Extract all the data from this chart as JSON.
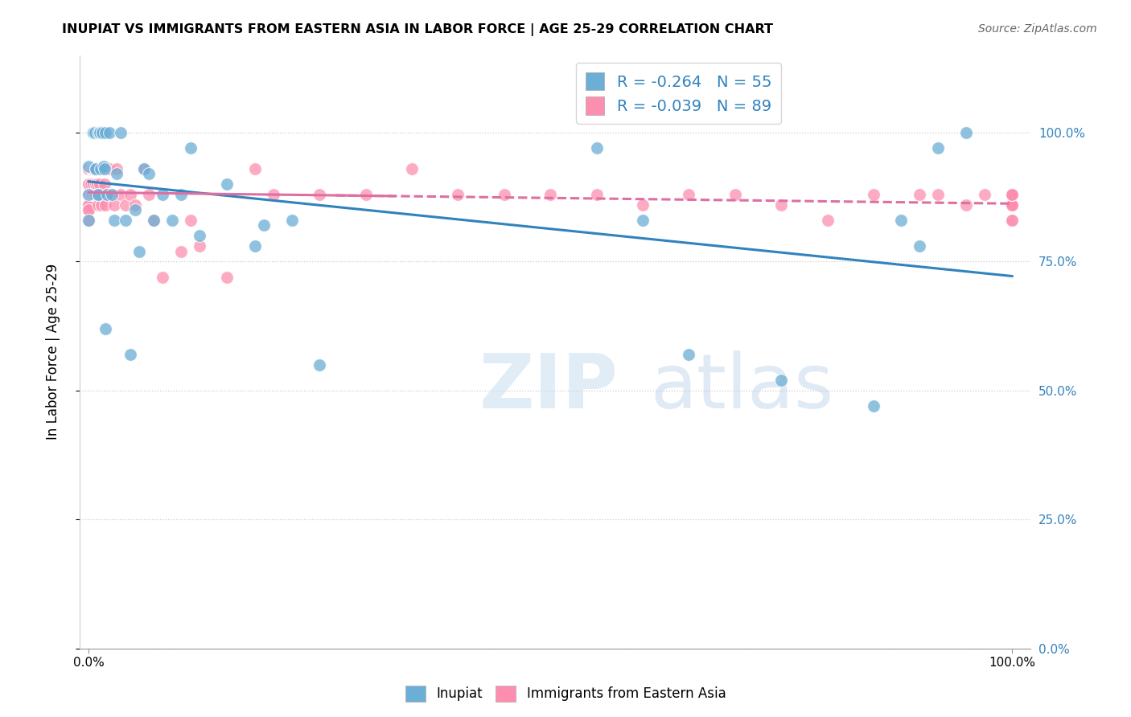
{
  "title": "INUPIAT VS IMMIGRANTS FROM EASTERN ASIA IN LABOR FORCE | AGE 25-29 CORRELATION CHART",
  "source": "Source: ZipAtlas.com",
  "ylabel": "In Labor Force | Age 25-29",
  "legend_R_blue": "-0.264",
  "legend_N_blue": "55",
  "legend_R_pink": "-0.039",
  "legend_N_pink": "89",
  "blue_color": "#6baed6",
  "pink_color": "#fc8faf",
  "trend_blue": "#3182bd",
  "trend_pink": "#de6fa1",
  "watermark_zip": "ZIP",
  "watermark_atlas": "atlas",
  "xlim": [
    0.0,
    1.0
  ],
  "ylim": [
    0.0,
    1.1
  ],
  "right_ytick_vals": [
    0.0,
    0.25,
    0.5,
    0.75,
    1.0
  ],
  "right_ytick_labels": [
    "0.0%",
    "25.0%",
    "50.0%",
    "75.0%",
    "100.0%"
  ],
  "blue_x": [
    0.0,
    0.0,
    0.0,
    0.004,
    0.004,
    0.005,
    0.005,
    0.005,
    0.007,
    0.008,
    0.008,
    0.01,
    0.01,
    0.01,
    0.012,
    0.012,
    0.013,
    0.015,
    0.015,
    0.016,
    0.017,
    0.018,
    0.018,
    0.02,
    0.022,
    0.025,
    0.028,
    0.03,
    0.035,
    0.04,
    0.045,
    0.05,
    0.055,
    0.06,
    0.065,
    0.07,
    0.08,
    0.09,
    0.1,
    0.11,
    0.12,
    0.15,
    0.18,
    0.19,
    0.22,
    0.25,
    0.55,
    0.6,
    0.65,
    0.75,
    0.85,
    0.88,
    0.9,
    0.92,
    0.95
  ],
  "blue_y": [
    0.935,
    0.88,
    0.83,
    1.0,
    1.0,
    1.0,
    1.0,
    1.0,
    1.0,
    0.93,
    0.93,
    0.88,
    0.88,
    1.0,
    1.0,
    1.0,
    0.93,
    1.0,
    1.0,
    0.935,
    0.93,
    1.0,
    0.62,
    0.88,
    1.0,
    0.88,
    0.83,
    0.92,
    1.0,
    0.83,
    0.57,
    0.85,
    0.77,
    0.93,
    0.92,
    0.83,
    0.88,
    0.83,
    0.88,
    0.97,
    0.8,
    0.9,
    0.78,
    0.82,
    0.83,
    0.55,
    0.97,
    0.83,
    0.57,
    0.52,
    0.47,
    0.83,
    0.78,
    0.97,
    1.0
  ],
  "pink_x": [
    0.0,
    0.0,
    0.0,
    0.0,
    0.0,
    0.0,
    0.0,
    0.0,
    0.0,
    0.0,
    0.0,
    0.0,
    0.0,
    0.002,
    0.002,
    0.002,
    0.003,
    0.003,
    0.004,
    0.004,
    0.005,
    0.005,
    0.005,
    0.006,
    0.006,
    0.007,
    0.007,
    0.008,
    0.008,
    0.009,
    0.009,
    0.01,
    0.01,
    0.011,
    0.012,
    0.012,
    0.013,
    0.014,
    0.015,
    0.015,
    0.016,
    0.017,
    0.018,
    0.02,
    0.022,
    0.025,
    0.028,
    0.03,
    0.035,
    0.04,
    0.045,
    0.05,
    0.06,
    0.065,
    0.07,
    0.08,
    0.1,
    0.11,
    0.12,
    0.15,
    0.18,
    0.2,
    0.25,
    0.3,
    0.35,
    0.4,
    0.45,
    0.5,
    0.55,
    0.6,
    0.65,
    0.7,
    0.75,
    0.8,
    0.85,
    0.9,
    0.92,
    0.95,
    0.97,
    1.0,
    1.0,
    1.0,
    1.0,
    1.0,
    1.0,
    1.0,
    1.0,
    1.0,
    1.0
  ],
  "pink_y": [
    0.93,
    0.93,
    0.93,
    0.93,
    0.9,
    0.9,
    0.88,
    0.88,
    0.86,
    0.86,
    0.85,
    0.85,
    0.83,
    0.93,
    0.9,
    0.88,
    0.93,
    0.88,
    0.93,
    0.88,
    0.93,
    0.93,
    0.9,
    0.88,
    0.88,
    0.93,
    0.88,
    0.9,
    0.88,
    0.93,
    0.9,
    0.88,
    0.86,
    0.88,
    0.93,
    0.9,
    0.88,
    0.86,
    0.93,
    0.88,
    0.88,
    0.9,
    0.86,
    0.88,
    0.93,
    0.88,
    0.86,
    0.93,
    0.88,
    0.86,
    0.88,
    0.86,
    0.93,
    0.88,
    0.83,
    0.72,
    0.77,
    0.83,
    0.78,
    0.72,
    0.93,
    0.88,
    0.88,
    0.88,
    0.93,
    0.88,
    0.88,
    0.88,
    0.88,
    0.86,
    0.88,
    0.88,
    0.86,
    0.83,
    0.88,
    0.88,
    0.88,
    0.86,
    0.88,
    0.88,
    0.86,
    0.86,
    0.86,
    0.83,
    0.86,
    0.83,
    0.88,
    0.88,
    0.88
  ]
}
